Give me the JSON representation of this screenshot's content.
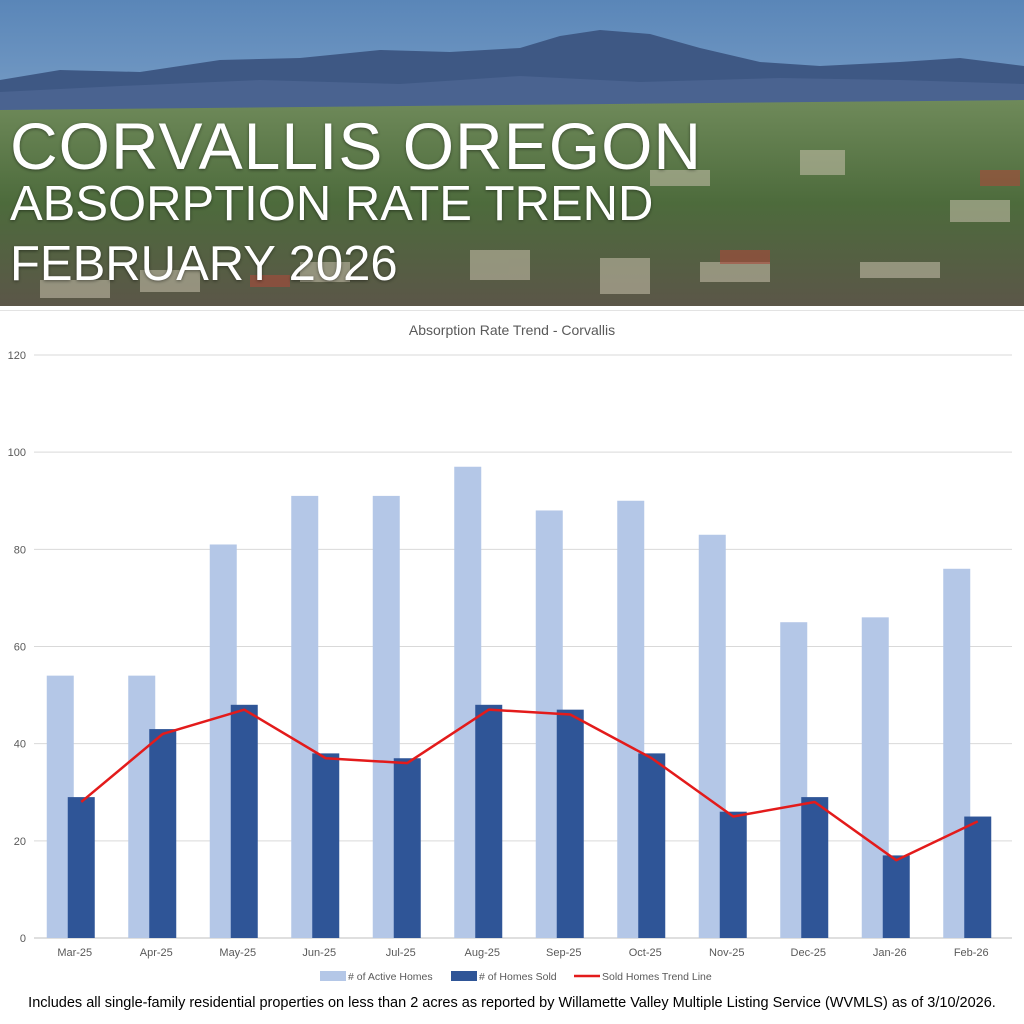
{
  "header": {
    "title": "CORVALLIS OREGON",
    "subtitle_line1": "ABSORPTION RATE TREND",
    "subtitle_line2": "FEBRUARY 2026"
  },
  "colors": {
    "active": "#b4c7e7",
    "sold": "#2f5597",
    "trend": "#e31b1b",
    "grid": "#d9d9d9",
    "axis_text": "#595959"
  },
  "chart_data": {
    "type": "bar",
    "title": "Absorption Rate Trend - Corvallis",
    "categories": [
      "Mar-25",
      "Apr-25",
      "May-25",
      "Jun-25",
      "Jul-25",
      "Aug-25",
      "Sep-25",
      "Oct-25",
      "Nov-25",
      "Dec-25",
      "Jan-26",
      "Feb-26"
    ],
    "series": [
      {
        "name": "# of Active Homes",
        "kind": "bar",
        "values": [
          54,
          54,
          81,
          91,
          91,
          97,
          88,
          90,
          83,
          65,
          66,
          76
        ]
      },
      {
        "name": "# of Homes Sold",
        "kind": "bar",
        "values": [
          29,
          43,
          48,
          38,
          37,
          48,
          47,
          38,
          26,
          29,
          17,
          25
        ]
      },
      {
        "name": "Sold Homes Trend Line",
        "kind": "line",
        "values": [
          28,
          42,
          47,
          37,
          36,
          47,
          46,
          37,
          25,
          28,
          16,
          24
        ]
      }
    ],
    "ylim": [
      0,
      120
    ],
    "yticks": [
      0,
      20,
      40,
      60,
      80,
      100,
      120
    ],
    "grid": true,
    "legend": "bottom-center"
  },
  "footnote": "Includes all single-family residential properties on less than 2 acres as reported by Willamette Valley Multiple Listing Service (WVMLS) as of 3/10/2026."
}
